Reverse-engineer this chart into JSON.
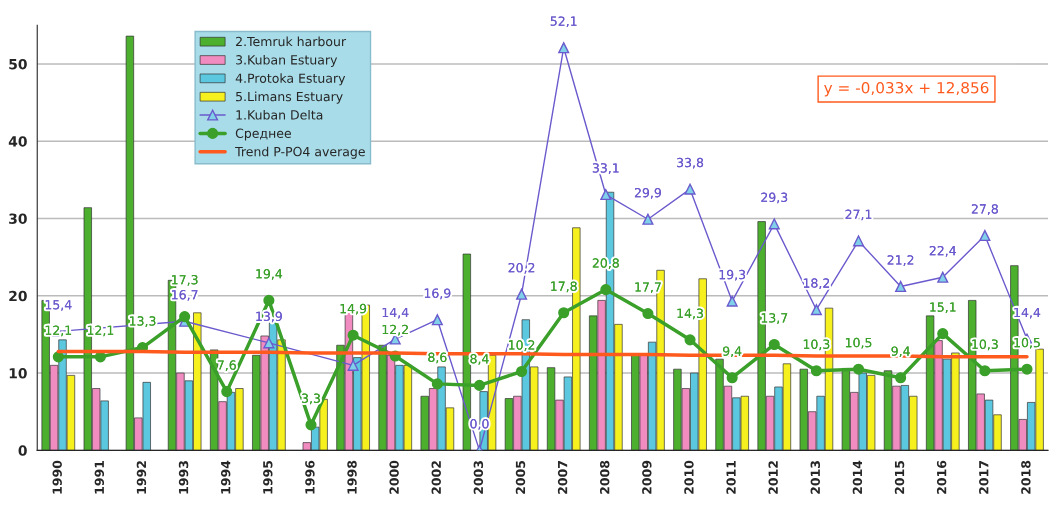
{
  "chart_data": {
    "type": "bar",
    "categories": [
      "1990",
      "1991",
      "1992",
      "1993",
      "1994",
      "1995",
      "1996",
      "1998",
      "2000",
      "2002",
      "2003",
      "2005",
      "2007",
      "2008",
      "2009",
      "2010",
      "2011",
      "2012",
      "2013",
      "2014",
      "2015",
      "2016",
      "2017",
      "2018"
    ],
    "ylim": [
      0,
      55
    ],
    "yticks": [
      0,
      10,
      20,
      30,
      40,
      50
    ],
    "grid": "y",
    "legend": "top left",
    "annotations": [
      "y = -0,033x + 12,856"
    ],
    "series": [
      {
        "name": "2.Temruk harbour",
        "color": "#4caf2e",
        "values": [
          19.4,
          31.4,
          53.6,
          22,
          13,
          12.3,
          null,
          13.6,
          13.6,
          7,
          25.4,
          6.7,
          10.7,
          17.4,
          12.5,
          10.5,
          11.8,
          29.6,
          10.5,
          10.6,
          10.3,
          17.4,
          19.4,
          23.9
        ]
      },
      {
        "name": "3.Kuban Estuary",
        "color": "#f08cc0",
        "values": [
          11,
          8,
          4.2,
          10,
          6.3,
          14.8,
          1,
          18,
          12.3,
          8,
          null,
          7,
          6.5,
          19.4,
          12.5,
          8,
          8.3,
          7,
          5,
          7.5,
          8.3,
          14.2,
          7.3,
          4
        ]
      },
      {
        "name": "4.Protoka Estuary",
        "color": "#5bc8e0",
        "values": [
          14.3,
          6.4,
          8.8,
          9,
          7.5,
          16.5,
          3,
          12,
          11,
          10.8,
          7.6,
          16.9,
          9.5,
          33.4,
          14,
          10,
          6.8,
          8.2,
          7,
          10,
          8.4,
          11.8,
          6.5,
          6.2
        ]
      },
      {
        "name": "5.Limans Estuary",
        "color": "#f5f01e",
        "values": [
          9.7,
          null,
          null,
          17.8,
          8,
          14.3,
          6.6,
          18.8,
          11,
          5.5,
          12.3,
          10.8,
          28.8,
          16.3,
          23.3,
          22.2,
          7,
          11.2,
          18.4,
          9.7,
          7,
          12.6,
          4.6,
          13.1
        ]
      },
      {
        "name": "1.Kuban Delta",
        "type": "line",
        "color": "#6a5acd",
        "marker": "triangle",
        "values": [
          15.4,
          null,
          null,
          16.7,
          null,
          13.9,
          null,
          11,
          14.4,
          16.9,
          0.0,
          20.2,
          52.1,
          33.1,
          29.9,
          33.8,
          19.3,
          29.3,
          18.2,
          27.1,
          21.2,
          22.4,
          27.8,
          14.4
        ],
        "value_labels": [
          "15,4",
          null,
          null,
          "16,7",
          null,
          "13,9",
          null,
          null,
          "14,4",
          "16,9",
          "0,0",
          "20,2",
          "52,1",
          "33,1",
          "29,9",
          "33,8",
          "19,3",
          "29,3",
          "18,2",
          "27,1",
          "21,2",
          "22,4",
          "27,8",
          "14,4"
        ]
      },
      {
        "name": "Среднее",
        "type": "line",
        "color": "#3aa02a",
        "marker": "circle",
        "values": [
          12.1,
          12.1,
          13.3,
          17.3,
          7.6,
          19.4,
          3.3,
          14.9,
          12.2,
          8.6,
          8.4,
          10.2,
          17.8,
          20.8,
          17.7,
          14.3,
          9.4,
          13.7,
          10.3,
          10.5,
          9.4,
          15.1,
          10.3,
          10.5
        ],
        "value_labels": [
          "12,1",
          "12,1",
          "13,3",
          "17,3",
          "7,6",
          "19,4",
          "3,3",
          "14,9",
          "12,2",
          "8,6",
          "8,4",
          "10,2",
          "17,8",
          "20,8",
          "17,7",
          "14,3",
          "9,4",
          "13,7",
          "10,3",
          "10,5",
          "9,4",
          "15,1",
          "10,3",
          "10,5"
        ]
      },
      {
        "name": "Trend P-PO4 average",
        "type": "line",
        "color": "#ff5a1e",
        "marker": "none",
        "values": [
          12.8,
          12.8,
          12.8,
          12.7,
          12.7,
          12.7,
          12.6,
          12.6,
          12.6,
          12.5,
          12.5,
          12.5,
          12.4,
          12.4,
          12.4,
          12.3,
          12.3,
          12.3,
          12.2,
          12.2,
          12.2,
          12.1,
          12.1,
          12.1
        ]
      }
    ]
  }
}
